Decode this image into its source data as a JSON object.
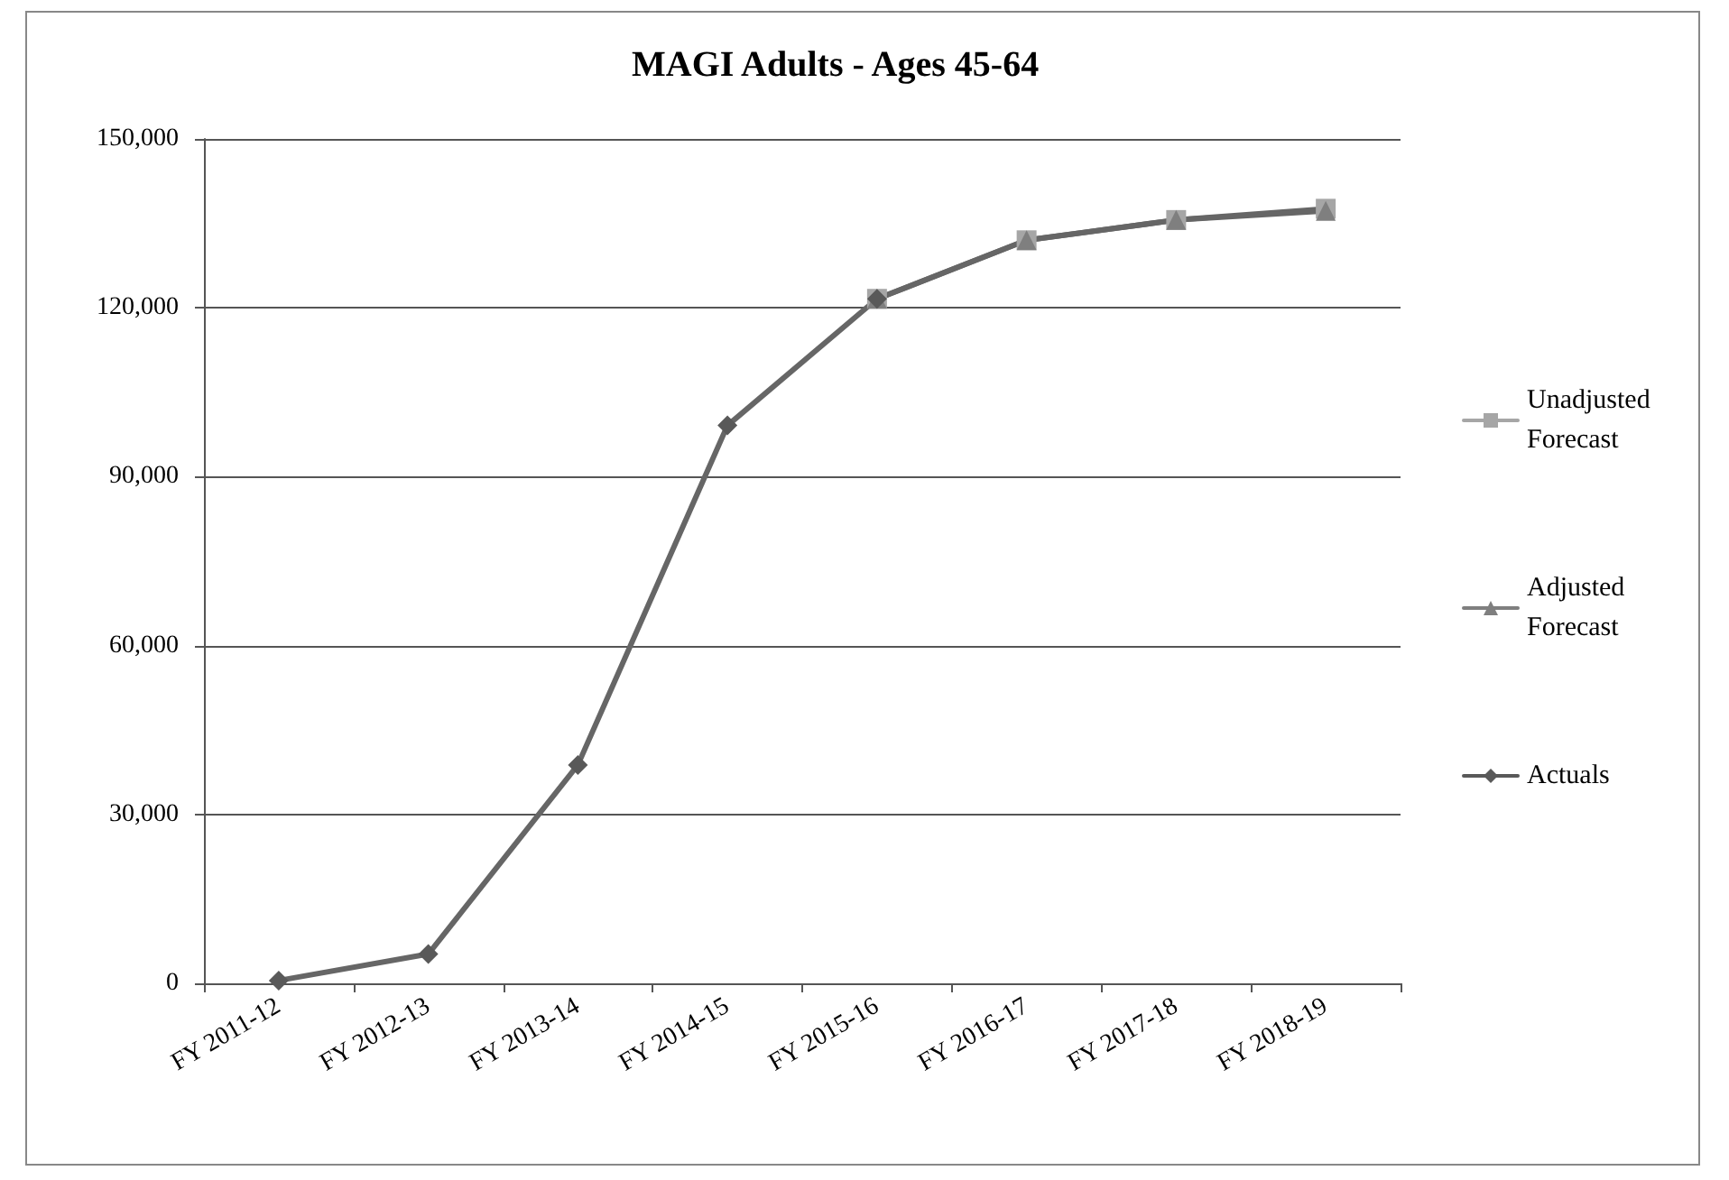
{
  "chart_data": {
    "type": "line",
    "title": "MAGI Adults - Ages 45-64",
    "categories": [
      "FY 2011-12",
      "FY 2012-13",
      "FY 2013-14",
      "FY 2014-15",
      "FY 2015-16",
      "FY 2016-17",
      "FY 2017-18",
      "FY 2018-19"
    ],
    "series": [
      {
        "name": "Unadjusted Forecast",
        "color": "#a6a6a6",
        "marker": "square",
        "values": [
          null,
          null,
          null,
          null,
          121600,
          132000,
          135600,
          137600
        ]
      },
      {
        "name": "Adjusted Forecast",
        "color": "#7f7f7f",
        "marker": "triangle",
        "values": [
          null,
          null,
          null,
          null,
          121600,
          132000,
          135600,
          137200
        ]
      },
      {
        "name": "Actuals",
        "color": "#595959",
        "marker": "diamond",
        "values": [
          500,
          5200,
          38800,
          99100,
          121600,
          null,
          null,
          null
        ]
      }
    ],
    "ylim": [
      0,
      150000
    ],
    "yticks": [
      0,
      {
        "value": 30000,
        "label": "30,000"
      },
      {
        "value": 60000,
        "label": "60,000"
      },
      {
        "value": 90000,
        "label": "90,000"
      },
      {
        "value": 120000,
        "label": "120,000"
      },
      {
        "value": 150000,
        "label": "150,000"
      }
    ],
    "grid": "y",
    "legend": "right",
    "line_style": "solid"
  }
}
